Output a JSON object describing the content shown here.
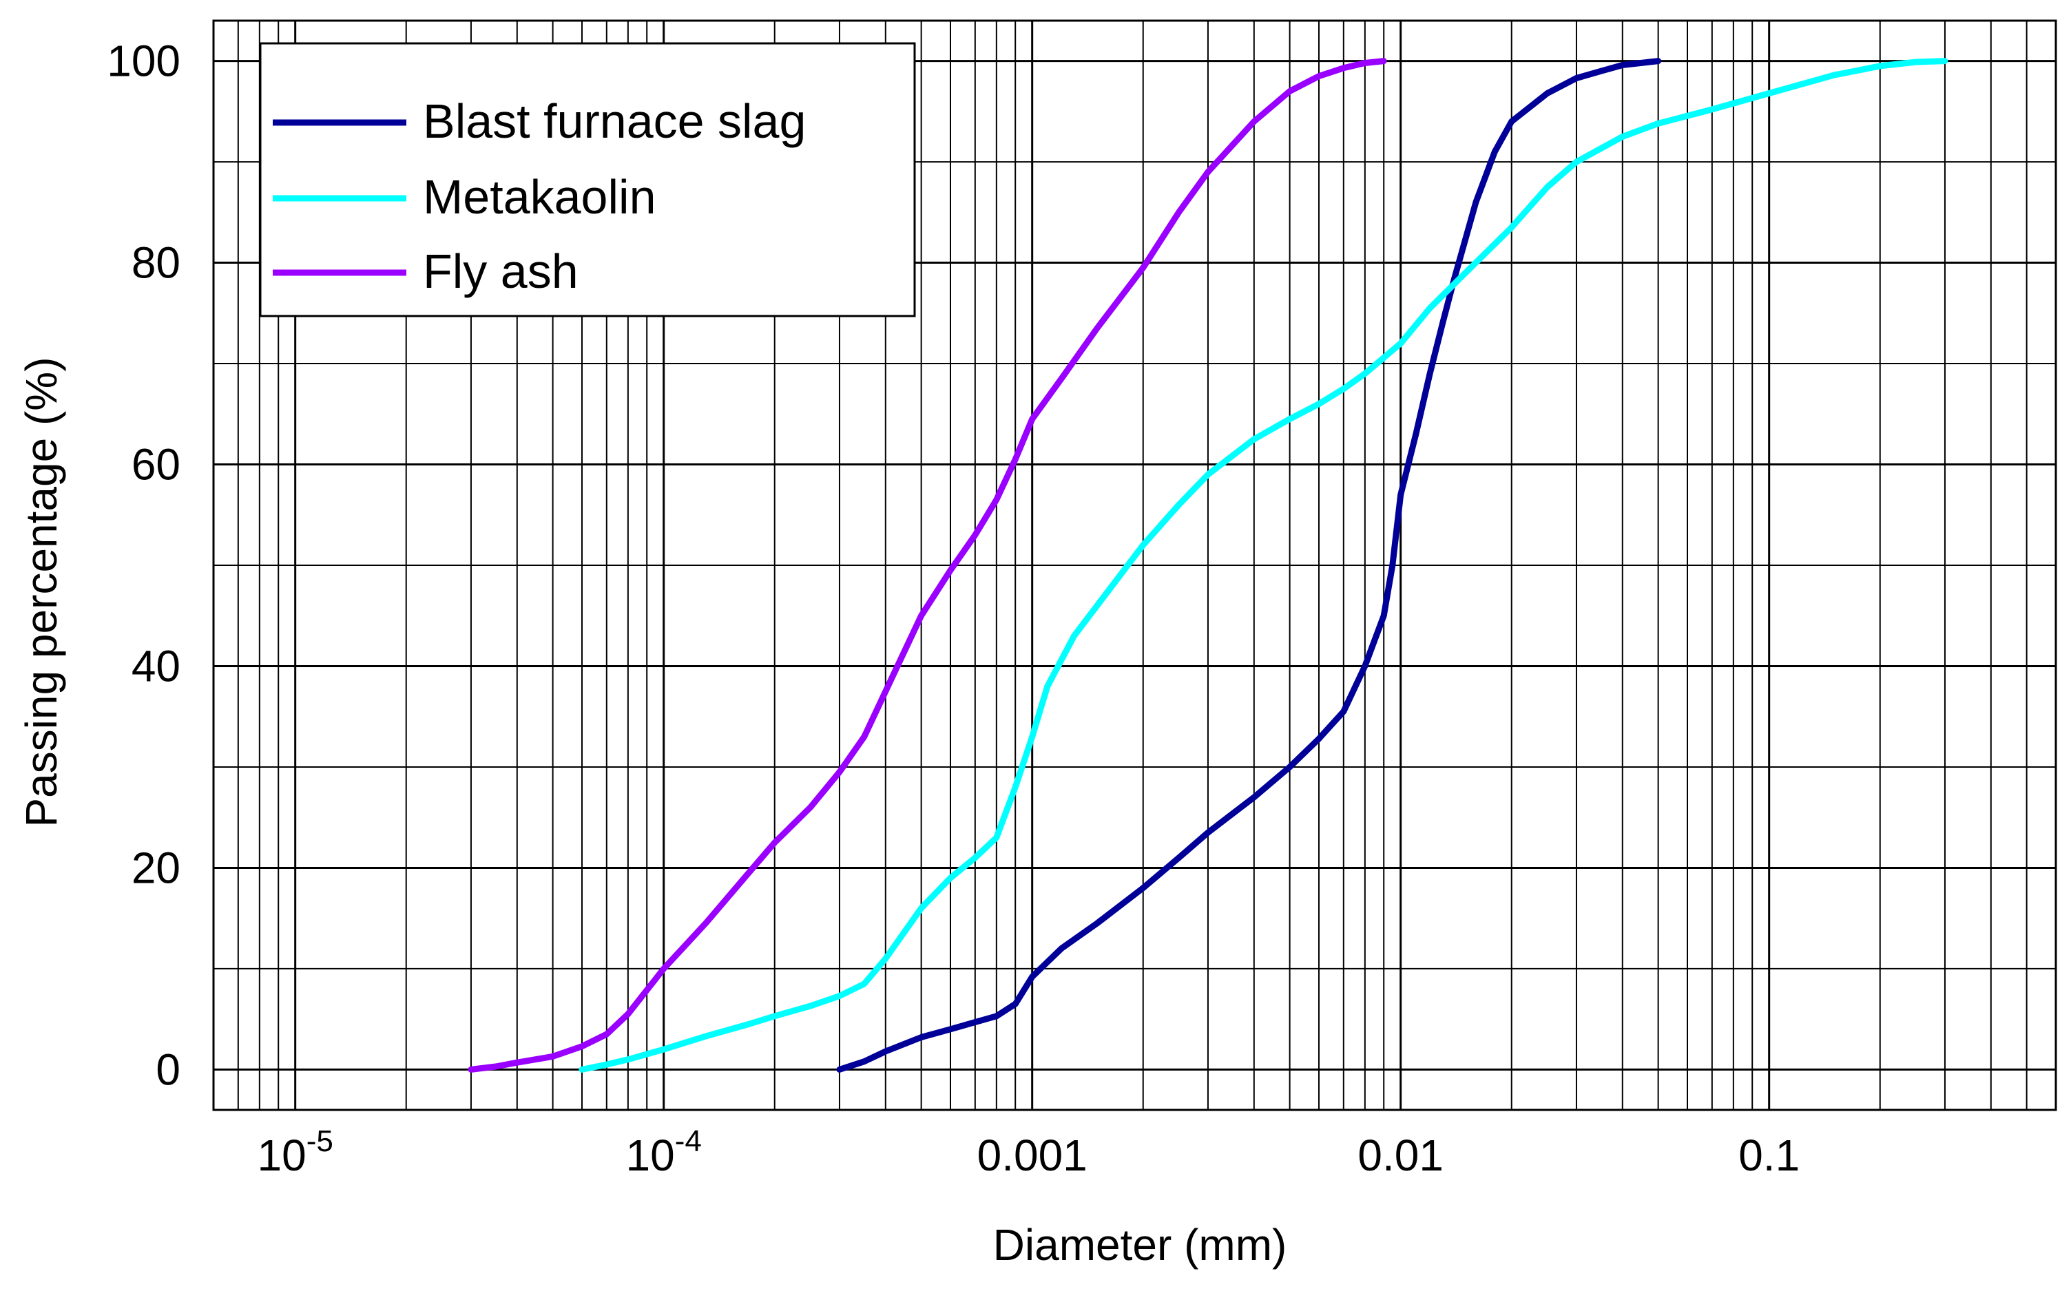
{
  "chart_data": {
    "type": "line",
    "title": "",
    "xlabel": "Diameter (mm)",
    "ylabel": "Passing percentage (%)",
    "x_scale": "log",
    "xlim": [
      6e-06,
      0.6
    ],
    "ylim": [
      -4,
      104
    ],
    "grid": true,
    "legend_position": "top-left",
    "x_ticks": [
      {
        "value": 1e-05,
        "base": "10",
        "exp": "-5"
      },
      {
        "value": 0.0001,
        "base": "10",
        "exp": "-4"
      },
      {
        "value": 0.001,
        "label": "0.001"
      },
      {
        "value": 0.01,
        "label": "0.01"
      },
      {
        "value": 0.1,
        "label": "0.1"
      }
    ],
    "y_ticks": [
      {
        "value": 0,
        "label": "0"
      },
      {
        "value": 20,
        "label": "20"
      },
      {
        "value": 40,
        "label": "40"
      },
      {
        "value": 60,
        "label": "60"
      },
      {
        "value": 80,
        "label": "80"
      },
      {
        "value": 100,
        "label": "100"
      }
    ],
    "series": [
      {
        "name": "Blast furnace slag",
        "color": "#000099",
        "x": [
          0.0003,
          0.00035,
          0.0004,
          0.0005,
          0.0006,
          0.0007,
          0.0008,
          0.0009,
          0.001,
          0.0012,
          0.0015,
          0.002,
          0.0025,
          0.003,
          0.004,
          0.005,
          0.006,
          0.007,
          0.008,
          0.009,
          0.0095,
          0.01,
          0.011,
          0.012,
          0.013,
          0.014,
          0.016,
          0.018,
          0.02,
          0.025,
          0.03,
          0.035,
          0.04,
          0.05
        ],
        "y": [
          0,
          0.8,
          1.8,
          3.2,
          4.0,
          4.7,
          5.3,
          6.5,
          9.2,
          12.0,
          14.5,
          18.0,
          21.0,
          23.5,
          27.0,
          30.0,
          32.8,
          35.5,
          40.0,
          45.0,
          50.0,
          57.0,
          63.0,
          69.0,
          74.0,
          78.5,
          86.0,
          91.0,
          94.0,
          96.8,
          98.3,
          99.0,
          99.6,
          100
        ]
      },
      {
        "name": "Metakaolin",
        "color": "#00FFFF",
        "x": [
          6e-05,
          7e-05,
          8e-05,
          0.0001,
          0.00013,
          0.00017,
          0.0002,
          0.00025,
          0.0003,
          0.00035,
          0.0004,
          0.0005,
          0.0006,
          0.0007,
          0.0008,
          0.0009,
          0.001,
          0.0011,
          0.0013,
          0.0015,
          0.002,
          0.0025,
          0.003,
          0.004,
          0.005,
          0.006,
          0.007,
          0.008,
          0.01,
          0.012,
          0.015,
          0.02,
          0.025,
          0.03,
          0.04,
          0.05,
          0.07,
          0.1,
          0.15,
          0.2,
          0.25,
          0.3
        ],
        "y": [
          0,
          0.5,
          1.0,
          2.0,
          3.3,
          4.5,
          5.3,
          6.3,
          7.3,
          8.5,
          11.0,
          16.0,
          19.0,
          21.0,
          23.0,
          28.0,
          33.0,
          38.0,
          43.0,
          46.0,
          52.0,
          56.0,
          59.0,
          62.5,
          64.5,
          66.0,
          67.5,
          69.0,
          72.0,
          75.5,
          79.0,
          83.5,
          87.5,
          90.0,
          92.5,
          93.8,
          95.2,
          96.8,
          98.6,
          99.5,
          99.9,
          100
        ]
      },
      {
        "name": "Fly ash",
        "color": "#9900FF",
        "x": [
          3e-05,
          3.5e-05,
          4e-05,
          5e-05,
          6e-05,
          7e-05,
          8e-05,
          0.0001,
          0.00013,
          0.00017,
          0.0002,
          0.00025,
          0.0003,
          0.00035,
          0.0004,
          0.0005,
          0.0006,
          0.0007,
          0.0008,
          0.0009,
          0.001,
          0.0012,
          0.0015,
          0.002,
          0.0025,
          0.003,
          0.004,
          0.005,
          0.006,
          0.007,
          0.008,
          0.009
        ],
        "y": [
          0,
          0.3,
          0.7,
          1.3,
          2.3,
          3.5,
          5.5,
          10.0,
          14.5,
          19.5,
          22.5,
          26.0,
          29.5,
          33.0,
          37.5,
          45.0,
          49.5,
          53.0,
          56.5,
          60.5,
          64.5,
          68.5,
          73.5,
          79.5,
          85.0,
          89.0,
          94.0,
          97.0,
          98.5,
          99.3,
          99.8,
          100
        ]
      }
    ]
  }
}
